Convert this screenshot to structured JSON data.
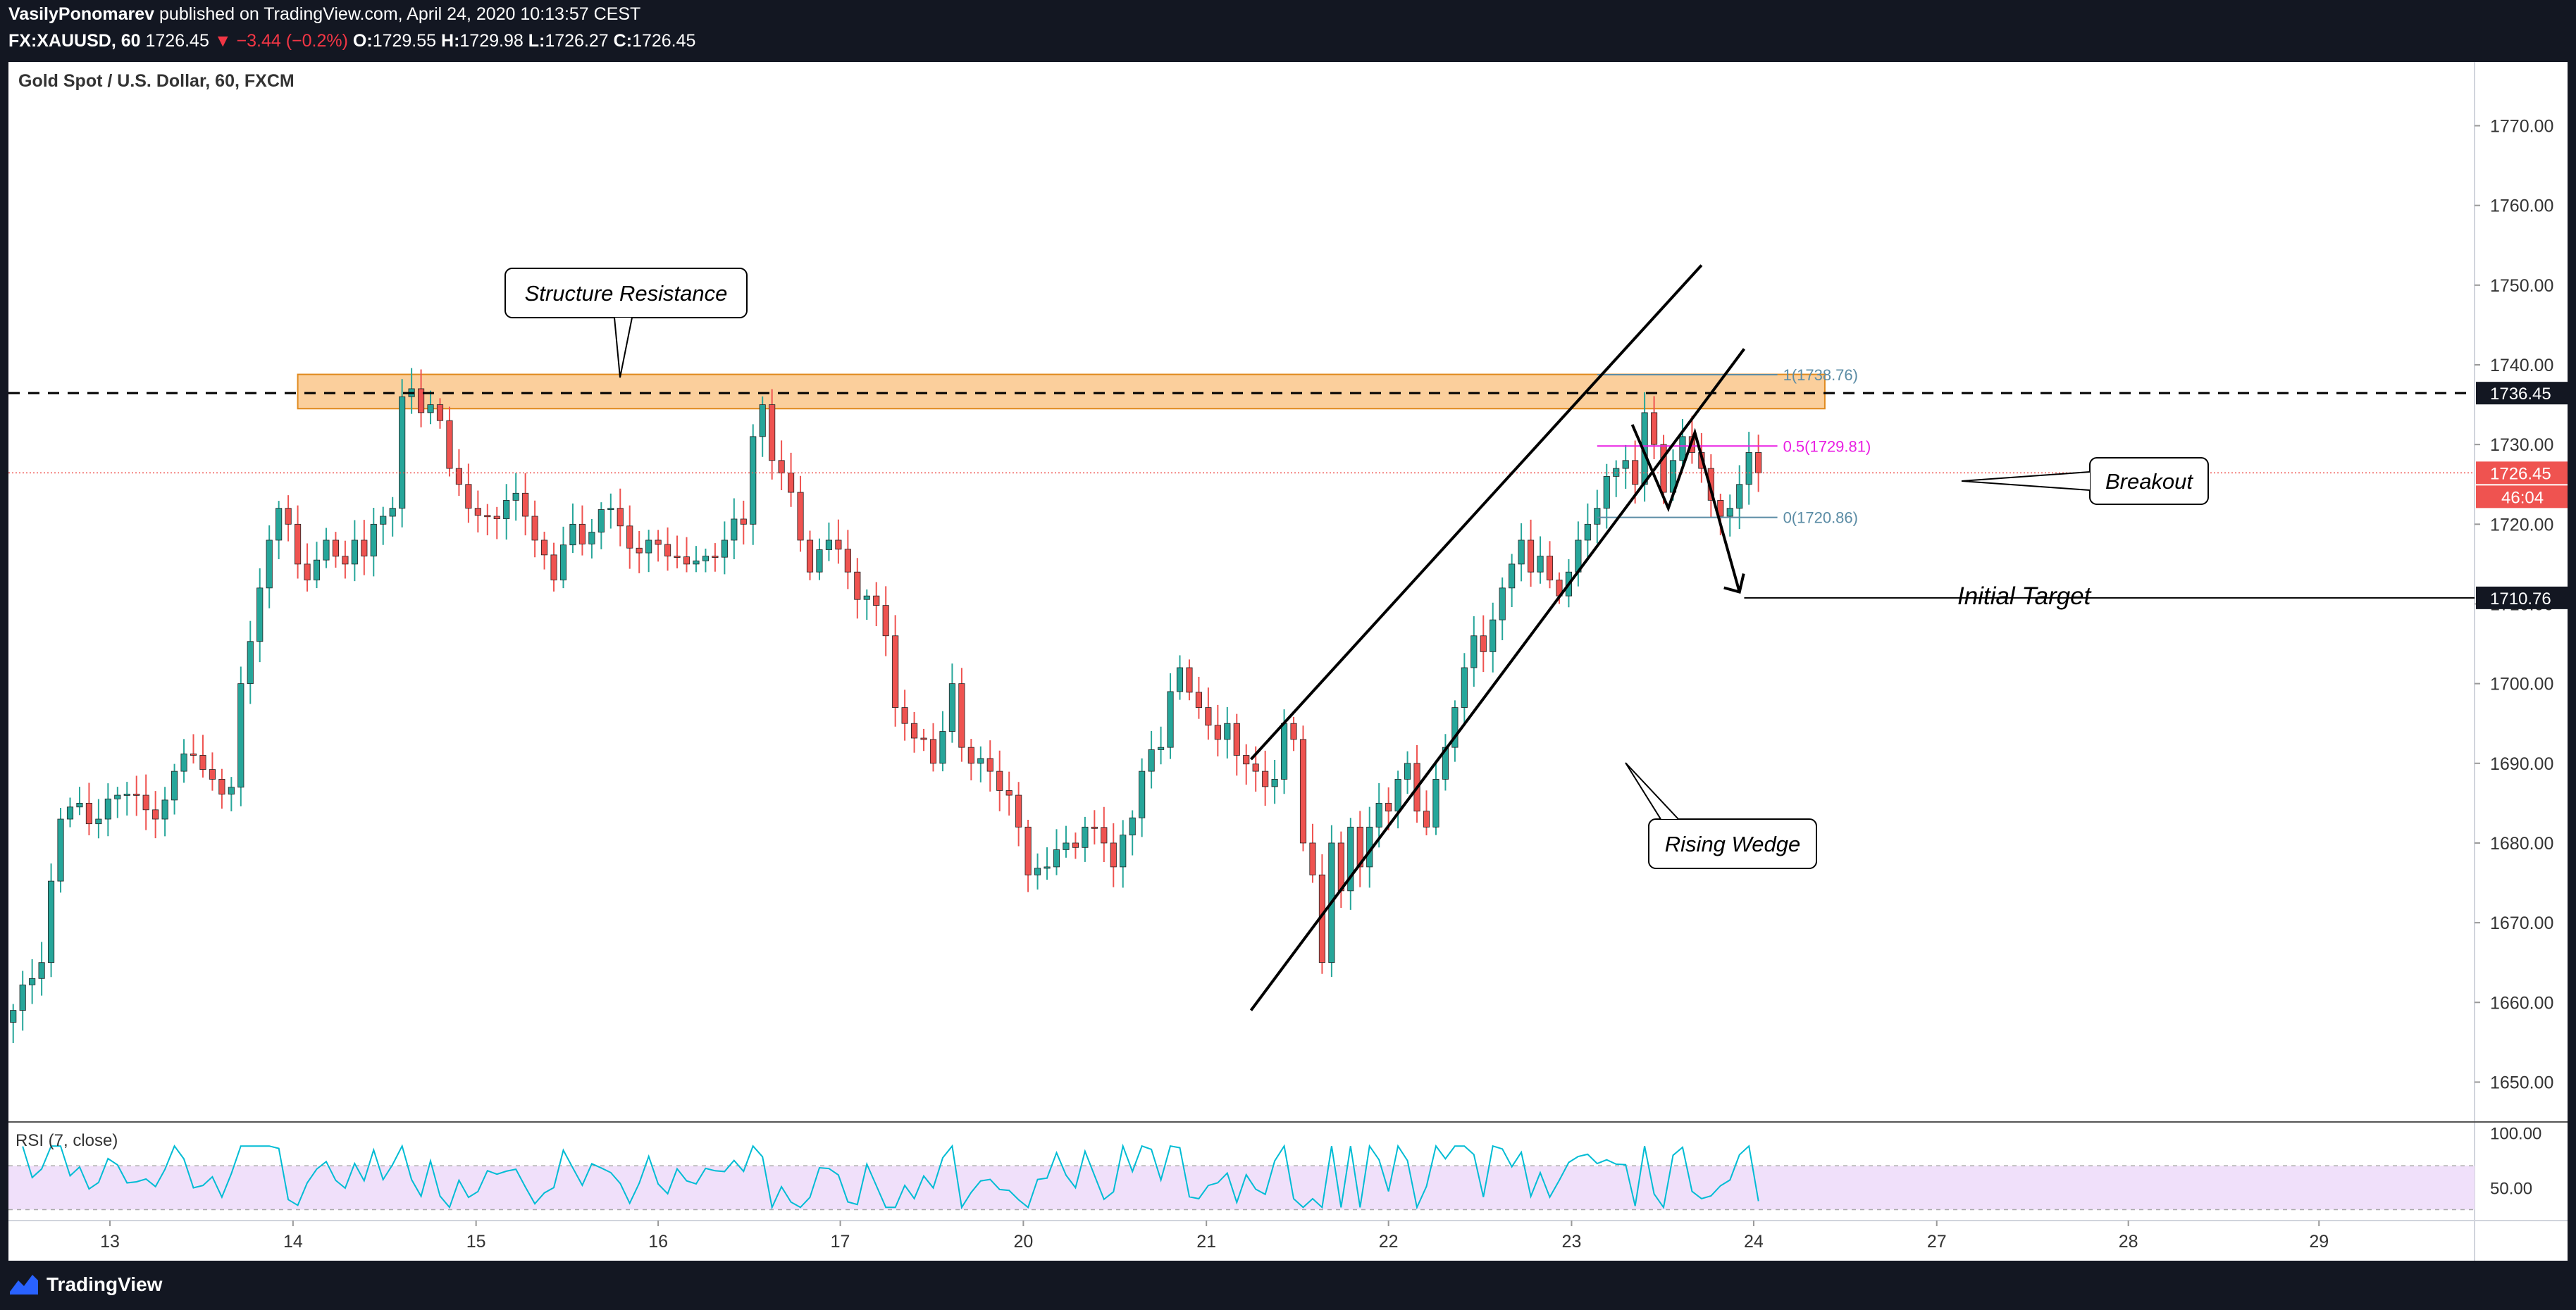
{
  "header": {
    "author": "VasilyPonomarev",
    "published_text": "published on TradingView.com, April 24, 2020 10:13:57 CEST",
    "symbol": "FX:XAUUSD, 60",
    "last": "1726.45",
    "change": "▼ −3.44 (−0.2%)",
    "o_label": "O:",
    "o": "1729.55",
    "h_label": "H:",
    "h": "1729.98",
    "l_label": "L:",
    "l": "1726.27",
    "c_label": "C:",
    "c": "1726.45"
  },
  "footer": {
    "brand": "TradingView"
  },
  "colors": {
    "up": "#26a69a",
    "down": "#ef5350",
    "zone": "#f7a74a",
    "fib_mid": "#e91ee3",
    "fib_other": "#5b8ca5",
    "rsi_line": "#00bcd4",
    "rsi_band": "#f0e0fa",
    "price_tag": "#ef5350"
  },
  "chart_data": {
    "type": "candlestick",
    "title": "Gold Spot / U.S. Dollar, 60, FXCM",
    "ylim": [
      1645,
      1778
    ],
    "x_index_range": [
      0,
      260
    ],
    "y_ticks": [
      1650,
      1660,
      1670,
      1680,
      1690,
      1700,
      1710,
      1720,
      1730,
      1740,
      1750,
      1760,
      1770
    ],
    "y_tick_labels": [
      "1650.00",
      "1660.00",
      "1670.00",
      "1680.00",
      "1690.00",
      "1700.00",
      "1710.00",
      "1720.00",
      "1730.00",
      "1740.00",
      "1750.00",
      "1760.00",
      "1770.00"
    ],
    "x_ticks": [
      {
        "label": "13",
        "x": 10.7
      },
      {
        "label": "14",
        "x": 30.0
      },
      {
        "label": "15",
        "x": 49.3
      },
      {
        "label": "16",
        "x": 68.5
      },
      {
        "label": "17",
        "x": 87.7
      },
      {
        "label": "20",
        "x": 107.0
      },
      {
        "label": "21",
        "x": 126.3
      },
      {
        "label": "22",
        "x": 145.5
      },
      {
        "label": "23",
        "x": 164.8
      },
      {
        "label": "24",
        "x": 184.0
      },
      {
        "label": "27",
        "x": 203.3
      },
      {
        "label": "28",
        "x": 223.5
      },
      {
        "label": "29",
        "x": 243.6
      }
    ],
    "close_anchors": [
      [
        0,
        1659
      ],
      [
        2,
        1663
      ],
      [
        3,
        1665
      ],
      [
        5,
        1683
      ],
      [
        7,
        1685
      ],
      [
        9,
        1683
      ],
      [
        11,
        1686
      ],
      [
        13,
        1686
      ],
      [
        15,
        1683
      ],
      [
        17,
        1689
      ],
      [
        19,
        1691
      ],
      [
        21,
        1688
      ],
      [
        23,
        1687
      ],
      [
        24,
        1700
      ],
      [
        26,
        1712
      ],
      [
        27,
        1718
      ],
      [
        28,
        1722
      ],
      [
        29,
        1720
      ],
      [
        30,
        1715
      ],
      [
        31,
        1713
      ],
      [
        33,
        1718
      ],
      [
        35,
        1715
      ],
      [
        36,
        1718
      ],
      [
        37,
        1716
      ],
      [
        38,
        1720
      ],
      [
        39,
        1721
      ],
      [
        40,
        1722
      ],
      [
        41,
        1736
      ],
      [
        42,
        1737
      ],
      [
        43,
        1734
      ],
      [
        44,
        1735
      ],
      [
        45,
        1733
      ],
      [
        46,
        1727
      ],
      [
        47,
        1725
      ],
      [
        48,
        1722
      ],
      [
        50,
        1721
      ],
      [
        52,
        1723
      ],
      [
        54,
        1721
      ],
      [
        55,
        1718
      ],
      [
        57,
        1713
      ],
      [
        59,
        1720
      ],
      [
        61,
        1719
      ],
      [
        63,
        1722
      ],
      [
        65,
        1717
      ],
      [
        67,
        1718
      ],
      [
        69,
        1716
      ],
      [
        71,
        1715
      ],
      [
        73,
        1716
      ],
      [
        75,
        1718
      ],
      [
        77,
        1720
      ],
      [
        78,
        1731
      ],
      [
        79,
        1735
      ],
      [
        80,
        1728
      ],
      [
        82,
        1724
      ],
      [
        83,
        1718
      ],
      [
        84,
        1714
      ],
      [
        86,
        1718
      ],
      [
        88,
        1714
      ],
      [
        90,
        1711
      ],
      [
        92,
        1706
      ],
      [
        93,
        1697
      ],
      [
        94,
        1695
      ],
      [
        96,
        1693
      ],
      [
        97,
        1690
      ],
      [
        98,
        1694
      ],
      [
        99,
        1700
      ],
      [
        100,
        1692
      ],
      [
        101,
        1690
      ],
      [
        103,
        1689
      ],
      [
        105,
        1686
      ],
      [
        106,
        1682
      ],
      [
        107,
        1676
      ],
      [
        109,
        1677
      ],
      [
        111,
        1680
      ],
      [
        113,
        1682
      ],
      [
        115,
        1680
      ],
      [
        116,
        1677
      ],
      [
        117,
        1681
      ],
      [
        119,
        1689
      ],
      [
        121,
        1692
      ],
      [
        122,
        1699
      ],
      [
        123,
        1702
      ],
      [
        125,
        1697
      ],
      [
        127,
        1693
      ],
      [
        128,
        1695
      ],
      [
        129,
        1691
      ],
      [
        131,
        1689
      ],
      [
        133,
        1688
      ],
      [
        134,
        1695
      ],
      [
        135,
        1693
      ],
      [
        136,
        1680
      ],
      [
        137,
        1676
      ],
      [
        138,
        1665
      ],
      [
        139,
        1680
      ],
      [
        140,
        1674
      ],
      [
        141,
        1682
      ],
      [
        142,
        1677
      ],
      [
        143,
        1682
      ],
      [
        144,
        1685
      ],
      [
        145,
        1684
      ],
      [
        146,
        1688
      ],
      [
        147,
        1690
      ],
      [
        148,
        1684
      ],
      [
        149,
        1682
      ],
      [
        150,
        1688
      ],
      [
        151,
        1692
      ],
      [
        152,
        1697
      ],
      [
        153,
        1702
      ],
      [
        154,
        1706
      ],
      [
        155,
        1704
      ],
      [
        156,
        1708
      ],
      [
        157,
        1712
      ],
      [
        158,
        1715
      ],
      [
        159,
        1718
      ],
      [
        160,
        1714
      ],
      [
        161,
        1716
      ],
      [
        162,
        1713
      ],
      [
        163,
        1711
      ],
      [
        164,
        1714
      ],
      [
        165,
        1718
      ],
      [
        166,
        1720
      ],
      [
        167,
        1722
      ],
      [
        168,
        1726
      ],
      [
        169,
        1727
      ],
      [
        170,
        1728
      ],
      [
        171,
        1725
      ],
      [
        172,
        1734
      ],
      [
        173,
        1730
      ],
      [
        174,
        1724
      ],
      [
        175,
        1728
      ],
      [
        176,
        1731
      ],
      [
        177,
        1729
      ],
      [
        178,
        1727
      ],
      [
        179,
        1723
      ],
      [
        180,
        1721
      ],
      [
        181,
        1722
      ],
      [
        182,
        1725
      ],
      [
        183,
        1729
      ],
      [
        184,
        1726.45
      ]
    ],
    "resistance_zone": {
      "from_x": 30.5,
      "to_x": 191.5,
      "y_low": 1734.5,
      "y_high": 1738.8
    },
    "horizontal_levels": [
      {
        "name": "resistance-dashed",
        "y": 1736.45,
        "label": "1736.45",
        "style": "dashed"
      },
      {
        "name": "initial-target",
        "y": 1710.76,
        "label": "1710.76",
        "style": "solid"
      }
    ],
    "current_price": {
      "y": 1726.45,
      "label": "1726.45",
      "countdown": "46:04"
    },
    "fib": [
      {
        "level": "1",
        "value": 1738.76,
        "text": "1(1738.76)"
      },
      {
        "level": "0.5",
        "value": 1729.81,
        "text": "0.5(1729.81)"
      },
      {
        "level": "0",
        "value": 1720.86,
        "text": "0(1720.86)"
      }
    ],
    "fib_range_x": [
      167.5,
      186.5
    ],
    "wedge_lines": [
      {
        "x1": 131.0,
        "y1": 1690.5,
        "x2": 178.5,
        "y2": 1752.5
      },
      {
        "x1": 131.0,
        "y1": 1659.0,
        "x2": 183.0,
        "y2": 1742.0
      }
    ],
    "zigzag": [
      [
        171.2,
        1732.5
      ],
      [
        175.0,
        1722.0
      ],
      [
        177.8,
        1731.5
      ],
      [
        182.5,
        1711.5
      ]
    ],
    "annotations": [
      {
        "name": "structure-resistance",
        "text": "Structure Resistance",
        "box": "callout-down"
      },
      {
        "name": "rising-wedge",
        "text": "Rising Wedge",
        "box": "callout-up"
      },
      {
        "name": "breakout",
        "text": "Breakout",
        "box": "callout-left"
      },
      {
        "name": "initial-target",
        "text": "Initial Target",
        "box": "none"
      }
    ],
    "rsi": {
      "label": "RSI (7, close)",
      "y_ticks": [
        "100.00",
        "50.00"
      ],
      "band": [
        30,
        70
      ],
      "values_hint": "oscillates between ~30 and ~90"
    }
  }
}
